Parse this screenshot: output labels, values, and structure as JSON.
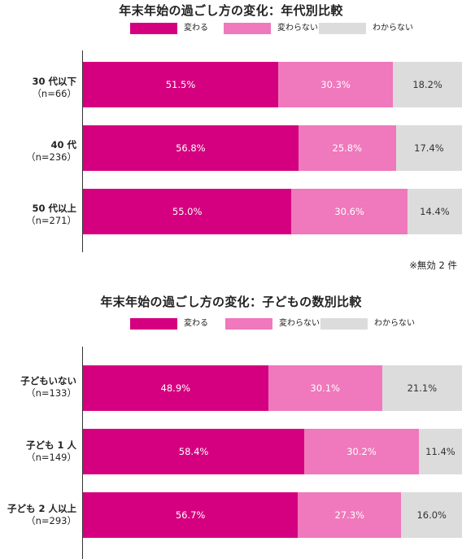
{
  "colors": {
    "change": "#d5007f",
    "nochange": "#f078bc",
    "unknown": "#dcdcdc"
  },
  "legend": [
    "変わる",
    "変わらない",
    "わからない"
  ],
  "note": "※無効 2 件",
  "chart_data": [
    {
      "type": "bar",
      "orientation": "horizontal-stacked-100",
      "title": "年末年始の過ごし方の変化：年代別比較",
      "categories": [
        "30 代以下",
        "40 代",
        "50 代以上"
      ],
      "category_n": [
        "（n=66）",
        "（n=236）",
        "（n=271）"
      ],
      "series": [
        {
          "name": "変わる",
          "values": [
            51.5,
            56.8,
            55.0
          ]
        },
        {
          "name": "変わらない",
          "values": [
            30.3,
            25.8,
            30.6
          ]
        },
        {
          "name": "わからない",
          "values": [
            18.2,
            17.4,
            14.4
          ]
        }
      ],
      "value_labels": [
        [
          "51.5%",
          "30.3%",
          "18.2%"
        ],
        [
          "56.8%",
          "25.8%",
          "17.4%"
        ],
        [
          "55.0%",
          "30.6%",
          "14.4%"
        ]
      ],
      "xlim": [
        0,
        100
      ],
      "legend_position": "top",
      "grid": false
    },
    {
      "type": "bar",
      "orientation": "horizontal-stacked-100",
      "title": "年末年始の過ごし方の変化：子どもの数別比較",
      "categories": [
        "子どもいない",
        "子ども 1 人",
        "子ども 2 人以上"
      ],
      "category_n": [
        "（n=133）",
        "（n=149）",
        "（n=293）"
      ],
      "series": [
        {
          "name": "変わる",
          "values": [
            48.9,
            58.4,
            56.7
          ]
        },
        {
          "name": "変わらない",
          "values": [
            30.1,
            30.2,
            27.3
          ]
        },
        {
          "name": "わからない",
          "values": [
            21.1,
            11.4,
            16.0
          ]
        }
      ],
      "value_labels": [
        [
          "48.9%",
          "30.1%",
          "21.1%"
        ],
        [
          "58.4%",
          "30.2%",
          "11.4%"
        ],
        [
          "56.7%",
          "27.3%",
          "16.0%"
        ]
      ],
      "xlim": [
        0,
        100
      ],
      "legend_position": "top",
      "grid": false
    }
  ]
}
